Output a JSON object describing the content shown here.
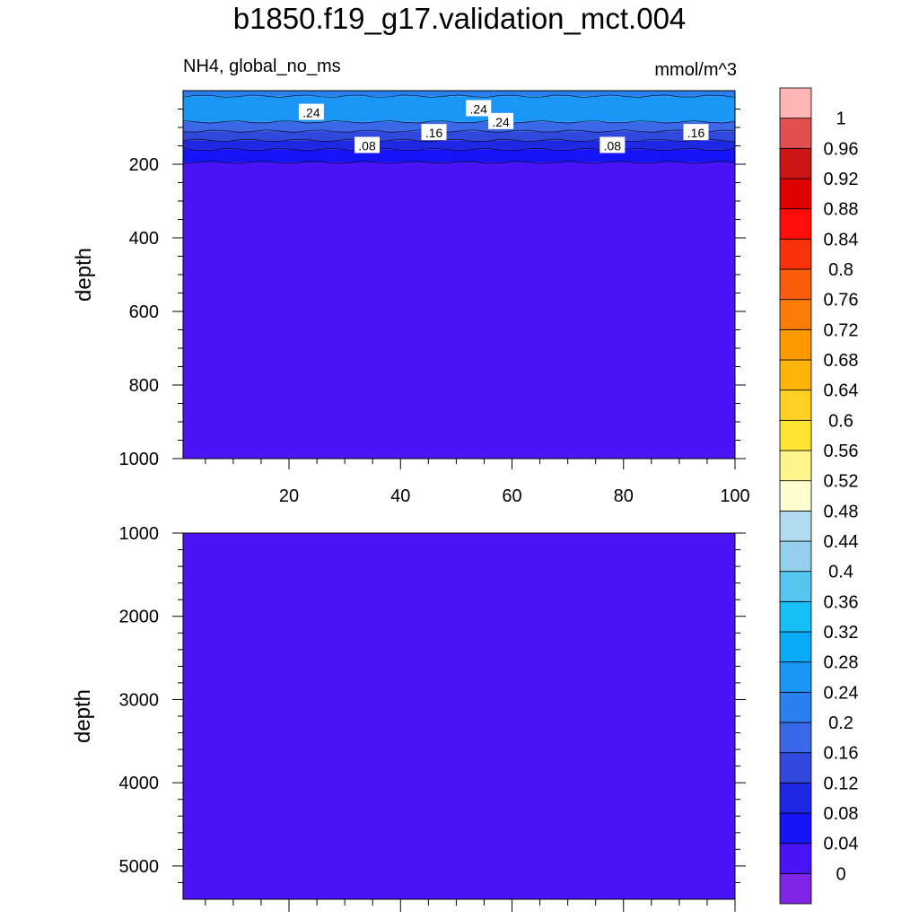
{
  "title": "b1850.f19_g17.validation_mct.004",
  "variable_label": "NH4, global_no_ms",
  "units_label": "mmol/m^3",
  "colors": {
    "levels": [
      "#7d24e5",
      "#4a14f6",
      "#1414f7",
      "#1e28e3",
      "#3049dc",
      "#3a68e8",
      "#2a80ef",
      "#1a96f6",
      "#0aabf6",
      "#16bff6",
      "#54c6ef",
      "#96cfeb",
      "#b3dcf3",
      "#fefed0",
      "#fef68a",
      "#fee531",
      "#fed023",
      "#fdb50c",
      "#fe9a01",
      "#fb7d08",
      "#fa5c0a",
      "#fa320a",
      "#fe0d0b",
      "#de0000",
      "#cb1616",
      "#e24f4f",
      "#fdb5b5"
    ]
  },
  "chart_data": [
    {
      "type": "contour",
      "panel": "upper",
      "ylabel": "depth",
      "ylim": [
        1000,
        0
      ],
      "yticks": [
        "200",
        "400",
        "600",
        "800",
        "1000"
      ],
      "xlim": [
        1,
        100
      ],
      "xticks": [
        "20",
        "40",
        "60",
        "80",
        "100"
      ],
      "contour_labels": [
        ".24",
        ".24",
        ".24",
        ".16",
        ".16",
        ".08",
        ".08"
      ],
      "layers": [
        {
          "value": 0.2,
          "depth_top": 0,
          "depth_bottom": 15
        },
        {
          "value": 0.24,
          "depth_top": 15,
          "depth_bottom": 85
        },
        {
          "value": 0.16,
          "depth_top": 85,
          "depth_bottom": 110
        },
        {
          "value": 0.12,
          "depth_top": 110,
          "depth_bottom": 135
        },
        {
          "value": 0.08,
          "depth_top": 135,
          "depth_bottom": 160
        },
        {
          "value": 0.04,
          "depth_top": 160,
          "depth_bottom": 195
        },
        {
          "value": 0.02,
          "depth_top": 195,
          "depth_bottom": 1000
        }
      ]
    },
    {
      "type": "contour",
      "panel": "lower",
      "ylabel": "depth",
      "ylim": [
        1000,
        5400
      ],
      "yticks": [
        "1000",
        "2000",
        "3000",
        "4000",
        "5000"
      ],
      "layers": [
        {
          "value": 0.02,
          "depth_top": 1000,
          "depth_bottom": 5400
        }
      ]
    }
  ],
  "colorbar": {
    "labels": [
      "0",
      "0.04",
      "0.08",
      "0.12",
      "0.16",
      "0.2",
      "0.24",
      "0.28",
      "0.32",
      "0.36",
      "0.4",
      "0.44",
      "0.48",
      "0.52",
      "0.56",
      "0.6",
      "0.64",
      "0.68",
      "0.72",
      "0.76",
      "0.8",
      "0.84",
      "0.88",
      "0.92",
      "0.96",
      "1"
    ]
  }
}
